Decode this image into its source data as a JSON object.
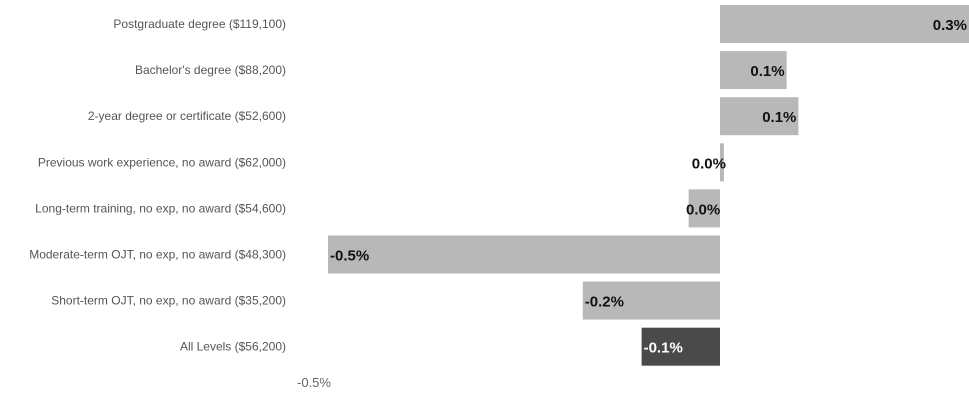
{
  "chart_data": {
    "type": "bar",
    "orientation": "horizontal",
    "categories": [
      "Postgraduate degree ($119,100)",
      "Bachelor's degree ($88,200)",
      "2-year degree or certificate ($52,600)",
      "Previous work experience, no award ($62,000)",
      "Long-term training, no exp, no award ($54,600)",
      "Moderate-term OJT, no exp, no award ($48,300)",
      "Short-term OJT, no exp, no award ($35,200)",
      "All Levels ($56,200)"
    ],
    "values": [
      0.3,
      0.1,
      0.1,
      0.0,
      0.0,
      -0.5,
      -0.2,
      -0.1
    ],
    "value_labels": [
      "0.3%",
      "0.1%",
      "0.1%",
      "0.0%",
      "0.0%",
      "-0.5%",
      "-0.2%",
      "-0.1%"
    ],
    "bar_values_precise": [
      0.32,
      0.085,
      0.1,
      0.005,
      -0.04,
      -0.5,
      -0.175,
      -0.1
    ],
    "highlight_index": 7,
    "colors": {
      "bar": "#b8b8b8",
      "highlight": "#4a4a4a"
    },
    "x_ticks": [
      "-0.5%"
    ],
    "xlim": [
      -0.5,
      0.32
    ],
    "title": "",
    "xlabel": "",
    "ylabel": ""
  }
}
